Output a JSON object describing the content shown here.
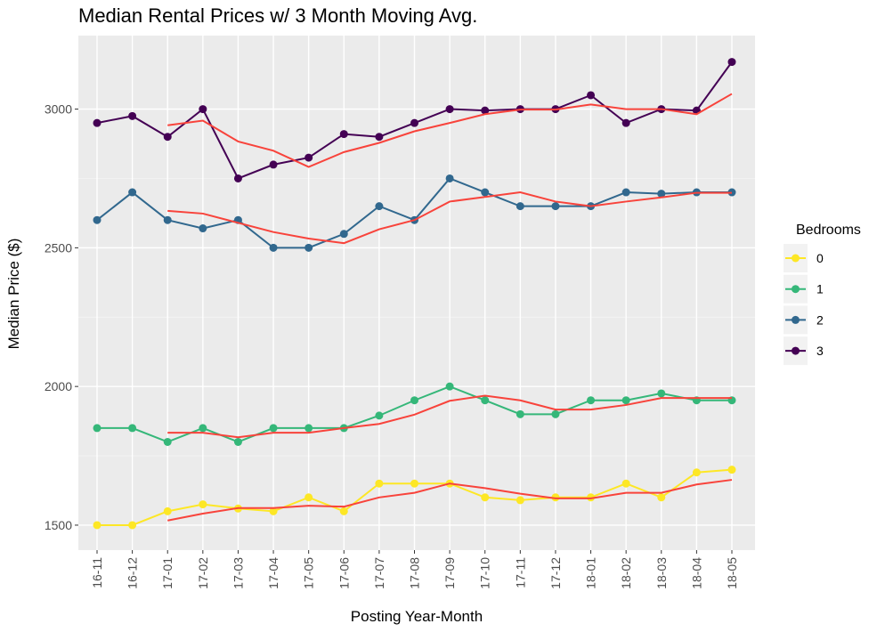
{
  "chart_data": {
    "type": "line",
    "title": "Median Rental Prices w/ 3 Month Moving Avg.",
    "xlabel": "Posting Year-Month",
    "ylabel": "Median Price ($)",
    "ylim": [
      1410,
      3265
    ],
    "yticks": [
      1500,
      2000,
      2500,
      3000
    ],
    "grid": true,
    "legend": {
      "title": "Bedrooms",
      "position": "right"
    },
    "categories": [
      "16-11",
      "16-12",
      "17-01",
      "17-02",
      "17-03",
      "17-04",
      "17-05",
      "17-06",
      "17-07",
      "17-08",
      "17-09",
      "17-10",
      "17-11",
      "17-12",
      "18-01",
      "18-02",
      "18-03",
      "18-04",
      "18-05"
    ],
    "moving_avg_window": 3,
    "moving_avg_color": "#F8433B",
    "series": [
      {
        "name": "0",
        "color": "#FDE725",
        "values": [
          1500,
          1500,
          1550,
          1575,
          1560,
          1550,
          1600,
          1550,
          1650,
          1650,
          1650,
          1600,
          1590,
          1600,
          1600,
          1650,
          1600,
          1690,
          1700
        ]
      },
      {
        "name": "1",
        "color": "#35B779",
        "values": [
          1850,
          1850,
          1800,
          1850,
          1800,
          1850,
          1850,
          1850,
          1895,
          1950,
          2000,
          1950,
          1900,
          1900,
          1950,
          1950,
          1975,
          1950,
          1950
        ]
      },
      {
        "name": "2",
        "color": "#31688E",
        "values": [
          2600,
          2700,
          2600,
          2570,
          2600,
          2500,
          2500,
          2550,
          2650,
          2600,
          2750,
          2700,
          2650,
          2650,
          2650,
          2700,
          2695,
          2700,
          2700
        ]
      },
      {
        "name": "3",
        "color": "#440154",
        "values": [
          2950,
          2975,
          2900,
          3000,
          2750,
          2800,
          2825,
          2910,
          2900,
          2950,
          3000,
          2995,
          3000,
          3000,
          3050,
          2950,
          3000,
          2995,
          3170
        ]
      }
    ]
  }
}
